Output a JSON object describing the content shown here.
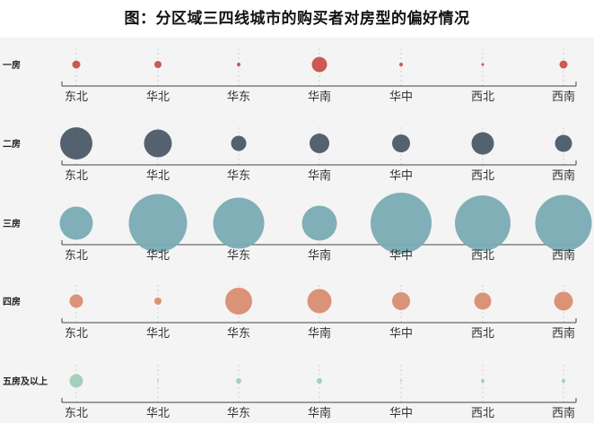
{
  "chart_data": {
    "type": "scatter",
    "title": "图：分区域三四线城市的购买者对房型的偏好情况",
    "categories": [
      "东北",
      "华北",
      "华东",
      "华南",
      "华中",
      "西北",
      "西南"
    ],
    "series": [
      {
        "name": "一房",
        "color": "#c9504c",
        "values": [
          4.5,
          4,
          2,
          8.5,
          2,
          1.5,
          4.5
        ]
      },
      {
        "name": "二房",
        "color": "#4b5a68",
        "values": [
          18,
          15.5,
          8.5,
          11,
          10,
          12.5,
          9.5
        ]
      },
      {
        "name": "三房",
        "color": "#7aabb3",
        "values": [
          18.5,
          32.5,
          28.5,
          19.5,
          34,
          31,
          31.5
        ]
      },
      {
        "name": "四房",
        "color": "#d98d70",
        "values": [
          7.5,
          4,
          15,
          13.5,
          10,
          9.5,
          10.5
        ]
      },
      {
        "name": "五房及以上",
        "color": "#9fcdb7",
        "values": [
          7.5,
          1,
          3,
          3,
          1,
          2,
          2
        ]
      }
    ],
    "note": "values are bubble radii in the chart's relative units (no numeric scale printed)"
  }
}
